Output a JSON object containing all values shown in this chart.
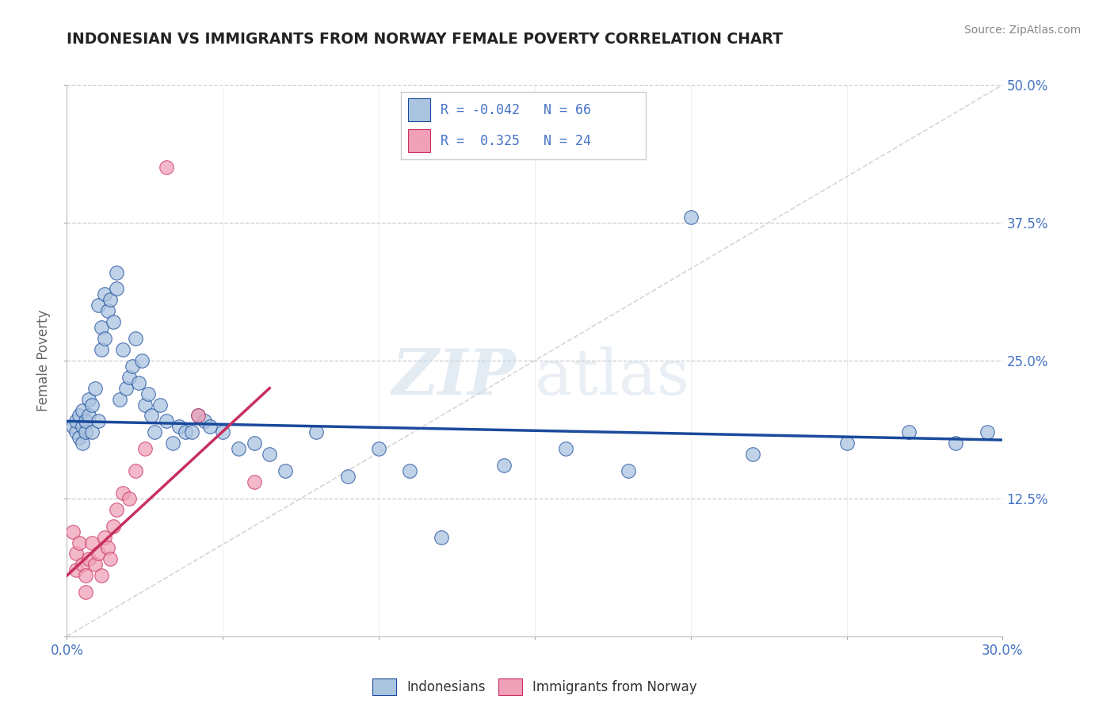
{
  "title": "INDONESIAN VS IMMIGRANTS FROM NORWAY FEMALE POVERTY CORRELATION CHART",
  "source": "Source: ZipAtlas.com",
  "ylabel": "Female Poverty",
  "x_min": 0.0,
  "x_max": 0.3,
  "y_min": 0.0,
  "y_max": 0.5,
  "y_ticks": [
    0.0,
    0.125,
    0.25,
    0.375,
    0.5
  ],
  "y_tick_labels": [
    "",
    "12.5%",
    "25.0%",
    "37.5%",
    "50.0%"
  ],
  "color_indonesian": "#aac4e0",
  "color_norway": "#f0a0b8",
  "color_trend_indonesian": "#1a4a9c",
  "color_trend_norway": "#c83060",
  "color_diagonal": "#cccccc",
  "background_color": "#ffffff",
  "watermark_zip": "ZIP",
  "watermark_atlas": "atlas",
  "indo_trend_x0": 0.0,
  "indo_trend_y0": 0.195,
  "indo_trend_x1": 0.3,
  "indo_trend_y1": 0.178,
  "norw_trend_x0": 0.0,
  "norw_trend_y0": 0.055,
  "norw_trend_x1": 0.065,
  "norw_trend_y1": 0.225,
  "indo_points_x": [
    0.002,
    0.003,
    0.003,
    0.004,
    0.004,
    0.005,
    0.005,
    0.005,
    0.006,
    0.006,
    0.007,
    0.007,
    0.008,
    0.008,
    0.009,
    0.01,
    0.01,
    0.011,
    0.011,
    0.012,
    0.012,
    0.013,
    0.014,
    0.015,
    0.016,
    0.016,
    0.017,
    0.018,
    0.019,
    0.02,
    0.021,
    0.022,
    0.023,
    0.024,
    0.025,
    0.026,
    0.027,
    0.028,
    0.03,
    0.032,
    0.034,
    0.036,
    0.038,
    0.04,
    0.042,
    0.044,
    0.046,
    0.05,
    0.055,
    0.06,
    0.065,
    0.07,
    0.08,
    0.09,
    0.1,
    0.11,
    0.12,
    0.14,
    0.16,
    0.18,
    0.2,
    0.22,
    0.25,
    0.27,
    0.285,
    0.295
  ],
  "indo_points_y": [
    0.19,
    0.185,
    0.195,
    0.18,
    0.2,
    0.175,
    0.19,
    0.205,
    0.185,
    0.195,
    0.2,
    0.215,
    0.185,
    0.21,
    0.225,
    0.195,
    0.3,
    0.28,
    0.26,
    0.27,
    0.31,
    0.295,
    0.305,
    0.285,
    0.315,
    0.33,
    0.215,
    0.26,
    0.225,
    0.235,
    0.245,
    0.27,
    0.23,
    0.25,
    0.21,
    0.22,
    0.2,
    0.185,
    0.21,
    0.195,
    0.175,
    0.19,
    0.185,
    0.185,
    0.2,
    0.195,
    0.19,
    0.185,
    0.17,
    0.175,
    0.165,
    0.15,
    0.185,
    0.145,
    0.17,
    0.15,
    0.09,
    0.155,
    0.17,
    0.15,
    0.38,
    0.165,
    0.175,
    0.185,
    0.175,
    0.185
  ],
  "norw_points_x": [
    0.002,
    0.003,
    0.003,
    0.004,
    0.005,
    0.006,
    0.006,
    0.007,
    0.008,
    0.009,
    0.01,
    0.011,
    0.012,
    0.013,
    0.014,
    0.015,
    0.016,
    0.018,
    0.02,
    0.022,
    0.025,
    0.032,
    0.042,
    0.06
  ],
  "norw_points_y": [
    0.095,
    0.075,
    0.06,
    0.085,
    0.065,
    0.055,
    0.04,
    0.07,
    0.085,
    0.065,
    0.075,
    0.055,
    0.09,
    0.08,
    0.07,
    0.1,
    0.115,
    0.13,
    0.125,
    0.15,
    0.17,
    0.425,
    0.2,
    0.14
  ]
}
